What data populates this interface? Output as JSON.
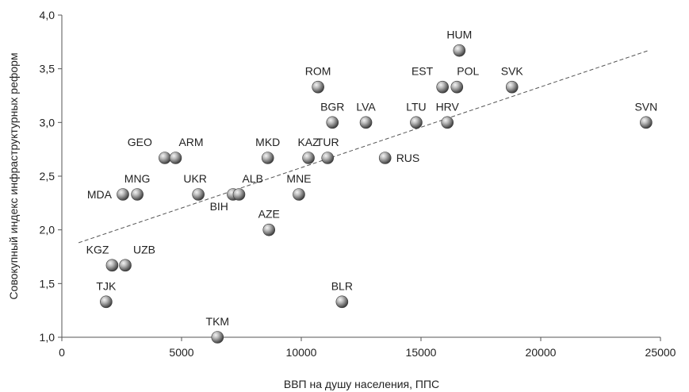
{
  "chart_data": {
    "type": "scatter",
    "xlabel": "ВВП на душу населения, ППС",
    "ylabel": "Совокупный индекс инфраструктурных реформ",
    "xlim": [
      0,
      25000
    ],
    "ylim": [
      1.0,
      4.0
    ],
    "x_ticks": [
      "0",
      "5000",
      "10000",
      "15000",
      "20000",
      "25000"
    ],
    "y_ticks": [
      "1,0",
      "1,5",
      "2,0",
      "2,5",
      "3,0",
      "3,5",
      "4,0"
    ],
    "trendline": {
      "x": [
        700,
        24500
      ],
      "y": [
        1.88,
        3.67
      ],
      "style": "dashed"
    },
    "points": [
      {
        "label": "HUM",
        "x": 16600,
        "y": 3.67
      },
      {
        "label": "ROM",
        "x": 10700,
        "y": 3.33
      },
      {
        "label": "EST",
        "x": 15900,
        "y": 3.33
      },
      {
        "label": "POL",
        "x": 16500,
        "y": 3.33
      },
      {
        "label": "SVK",
        "x": 18800,
        "y": 3.33
      },
      {
        "label": "BGR",
        "x": 11300,
        "y": 3.0
      },
      {
        "label": "LVA",
        "x": 12700,
        "y": 3.0
      },
      {
        "label": "LTU",
        "x": 14800,
        "y": 3.0
      },
      {
        "label": "HRV",
        "x": 16100,
        "y": 3.0
      },
      {
        "label": "SVN",
        "x": 24400,
        "y": 3.0
      },
      {
        "label": "GEO",
        "x": 4300,
        "y": 2.67
      },
      {
        "label": "ARM",
        "x": 4750,
        "y": 2.67
      },
      {
        "label": "MKD",
        "x": 8600,
        "y": 2.67
      },
      {
        "label": "KAZ",
        "x": 10300,
        "y": 2.67
      },
      {
        "label": "TUR",
        "x": 11100,
        "y": 2.67
      },
      {
        "label": "RUS",
        "x": 13500,
        "y": 2.67
      },
      {
        "label": "MDA",
        "x": 2550,
        "y": 2.33
      },
      {
        "label": "MNG",
        "x": 3150,
        "y": 2.33
      },
      {
        "label": "UKR",
        "x": 5700,
        "y": 2.33
      },
      {
        "label": "BIH",
        "x": 7150,
        "y": 2.33
      },
      {
        "label": "ALB",
        "x": 7400,
        "y": 2.33
      },
      {
        "label": "MNE",
        "x": 9900,
        "y": 2.33
      },
      {
        "label": "AZE",
        "x": 8650,
        "y": 2.0
      },
      {
        "label": "KGZ",
        "x": 2100,
        "y": 1.67
      },
      {
        "label": "UZB",
        "x": 2650,
        "y": 1.67
      },
      {
        "label": "TJK",
        "x": 1850,
        "y": 1.33
      },
      {
        "label": "BLR",
        "x": 11700,
        "y": 1.33
      },
      {
        "label": "TKM",
        "x": 6500,
        "y": 1.0
      }
    ]
  }
}
